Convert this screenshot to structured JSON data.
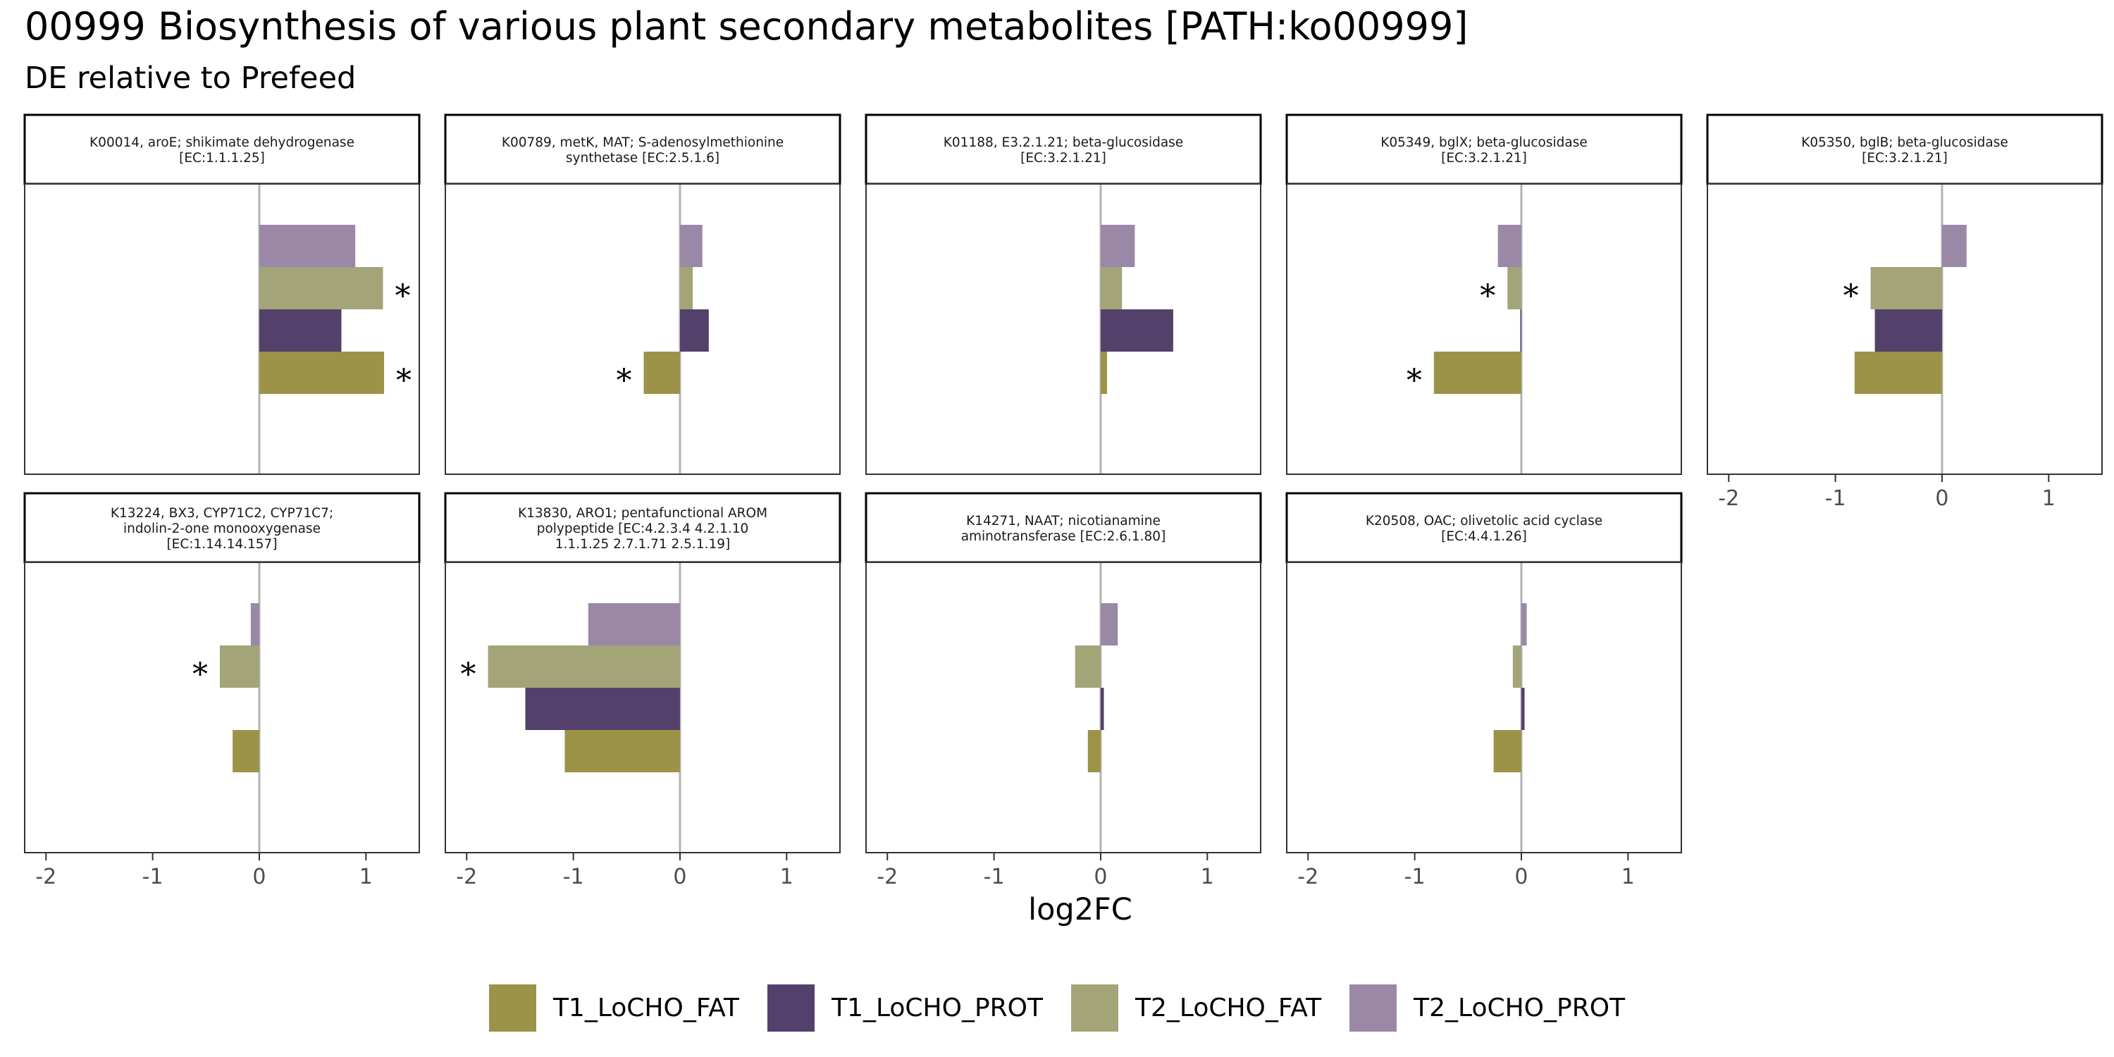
{
  "title": "00999 Biosynthesis of various plant secondary metabolites [PATH:ko00999]",
  "subtitle": "DE relative to Prefeed",
  "colors": {
    "T1_LoCHO_FAT": "#9c9348",
    "T1_LoCHO_PROT": "#53416c",
    "T2_LoCHO_FAT": "#a3a478",
    "T2_LoCHO_PROT": "#9b88a6"
  },
  "chart_data": {
    "type": "bar",
    "orientation": "horizontal",
    "xlabel": "log2FC",
    "xlim": [
      -2.2,
      1.5
    ],
    "x_ticks": [
      -2,
      -1,
      0,
      1
    ],
    "x_tick_labels": [
      "-2",
      "-1",
      "0",
      "1"
    ],
    "series_order": [
      "T1_LoCHO_FAT",
      "T1_LoCHO_PROT",
      "T2_LoCHO_FAT",
      "T2_LoCHO_PROT"
    ],
    "significance_marker": "*",
    "legend_position": "bottom",
    "grid": false,
    "panels": [
      {
        "strip": [
          "K00014, aroE; shikimate dehydrogenase",
          "[EC:1.1.1.25]"
        ],
        "bars": [
          {
            "series": "T1_LoCHO_FAT",
            "value": 1.17,
            "sig": true
          },
          {
            "series": "T1_LoCHO_PROT",
            "value": 0.77,
            "sig": false
          },
          {
            "series": "T2_LoCHO_FAT",
            "value": 1.16,
            "sig": true
          },
          {
            "series": "T2_LoCHO_PROT",
            "value": 0.9,
            "sig": false
          }
        ]
      },
      {
        "strip": [
          "K00789, metK, MAT; S-adenosylmethionine",
          "synthetase [EC:2.5.1.6]"
        ],
        "bars": [
          {
            "series": "T1_LoCHO_FAT",
            "value": -0.34,
            "sig": true
          },
          {
            "series": "T1_LoCHO_PROT",
            "value": 0.27,
            "sig": false
          },
          {
            "series": "T2_LoCHO_FAT",
            "value": 0.12,
            "sig": false
          },
          {
            "series": "T2_LoCHO_PROT",
            "value": 0.21,
            "sig": false
          }
        ]
      },
      {
        "strip": [
          "K01188, E3.2.1.21; beta-glucosidase",
          "[EC:3.2.1.21]"
        ],
        "bars": [
          {
            "series": "T1_LoCHO_FAT",
            "value": 0.06,
            "sig": false
          },
          {
            "series": "T1_LoCHO_PROT",
            "value": 0.68,
            "sig": false
          },
          {
            "series": "T2_LoCHO_FAT",
            "value": 0.2,
            "sig": false
          },
          {
            "series": "T2_LoCHO_PROT",
            "value": 0.32,
            "sig": false
          }
        ]
      },
      {
        "strip": [
          "K05349, bglX; beta-glucosidase",
          "[EC:3.2.1.21]"
        ],
        "bars": [
          {
            "series": "T1_LoCHO_FAT",
            "value": -0.82,
            "sig": true
          },
          {
            "series": "T1_LoCHO_PROT",
            "value": -0.01,
            "sig": false
          },
          {
            "series": "T2_LoCHO_FAT",
            "value": -0.13,
            "sig": true
          },
          {
            "series": "T2_LoCHO_PROT",
            "value": -0.22,
            "sig": false
          }
        ]
      },
      {
        "strip": [
          "K05350, bglB; beta-glucosidase",
          "[EC:3.2.1.21]"
        ],
        "bars": [
          {
            "series": "T1_LoCHO_FAT",
            "value": -0.82,
            "sig": false
          },
          {
            "series": "T1_LoCHO_PROT",
            "value": -0.63,
            "sig": false
          },
          {
            "series": "T2_LoCHO_FAT",
            "value": -0.67,
            "sig": true
          },
          {
            "series": "T2_LoCHO_PROT",
            "value": 0.23,
            "sig": false
          }
        ]
      },
      {
        "strip": [
          "K13224, BX3, CYP71C2, CYP71C7;",
          "indolin-2-one monooxygenase",
          "[EC:1.14.14.157]"
        ],
        "bars": [
          {
            "series": "T1_LoCHO_FAT",
            "value": -0.25,
            "sig": false
          },
          {
            "series": "T1_LoCHO_PROT",
            "value": 0,
            "sig": false
          },
          {
            "series": "T2_LoCHO_FAT",
            "value": -0.37,
            "sig": true
          },
          {
            "series": "T2_LoCHO_PROT",
            "value": -0.08,
            "sig": false
          }
        ]
      },
      {
        "strip": [
          "K13830, ARO1; pentafunctional AROM",
          "polypeptide [EC:4.2.3.4 4.2.1.10",
          "1.1.1.25 2.7.1.71 2.5.1.19]"
        ],
        "bars": [
          {
            "series": "T1_LoCHO_FAT",
            "value": -1.08,
            "sig": false
          },
          {
            "series": "T1_LoCHO_PROT",
            "value": -1.45,
            "sig": false
          },
          {
            "series": "T2_LoCHO_FAT",
            "value": -1.8,
            "sig": true
          },
          {
            "series": "T2_LoCHO_PROT",
            "value": -0.86,
            "sig": false
          }
        ]
      },
      {
        "strip": [
          "K14271, NAAT; nicotianamine",
          "aminotransferase [EC:2.6.1.80]"
        ],
        "bars": [
          {
            "series": "T1_LoCHO_FAT",
            "value": -0.12,
            "sig": false
          },
          {
            "series": "T1_LoCHO_PROT",
            "value": 0.03,
            "sig": false
          },
          {
            "series": "T2_LoCHO_FAT",
            "value": -0.24,
            "sig": false
          },
          {
            "series": "T2_LoCHO_PROT",
            "value": 0.16,
            "sig": false
          }
        ]
      },
      {
        "strip": [
          "K20508, OAC; olivetolic acid cyclase",
          "[EC:4.4.1.26]"
        ],
        "bars": [
          {
            "series": "T1_LoCHO_FAT",
            "value": -0.26,
            "sig": false
          },
          {
            "series": "T1_LoCHO_PROT",
            "value": 0.03,
            "sig": false
          },
          {
            "series": "T2_LoCHO_FAT",
            "value": -0.08,
            "sig": false
          },
          {
            "series": "T2_LoCHO_PROT",
            "value": 0.05,
            "sig": false
          }
        ]
      }
    ]
  }
}
